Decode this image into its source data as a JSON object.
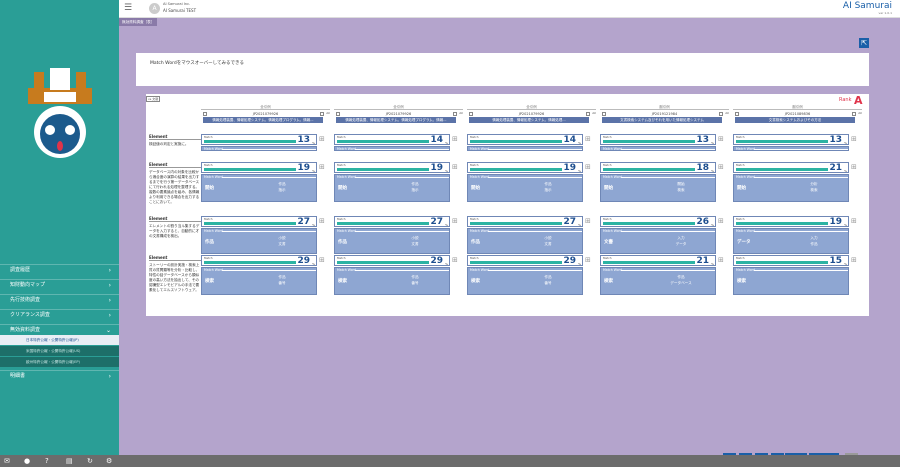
{
  "brand": {
    "company": "AI Samurai Inc.",
    "product": "AI Samurai TEST",
    "logo": "AI Samurai",
    "version": "ver 1.0.1"
  },
  "tab": {
    "label": "無効資料調査［表］"
  },
  "sidebar": {
    "items": [
      {
        "label": "調査履歴",
        "active": false
      },
      {
        "label": "知財動向マップ",
        "active": false
      },
      {
        "label": "先行技術調査",
        "active": false
      },
      {
        "label": "クリアランス調査",
        "active": false
      },
      {
        "label": "無効資料調査",
        "active": true
      },
      {
        "label": "明細書",
        "active": false
      }
    ],
    "subitems": [
      "日本特許公報・公開特許公報(JP)",
      "米国特許公報・公開特許公報(US)",
      "欧州特許公報・公開特許公報(EP)"
    ]
  },
  "instruction": "Match Wordをマウスオーバーしてみるできる",
  "label_tag": "vs 文献",
  "rank": {
    "label": "Rank",
    "value": "A"
  },
  "all_label": "All",
  "columns": [
    {
      "label": "全引例",
      "number": "JP2021079926",
      "title": "情報処理装置、情報処理システム、情報処理プログラム、情報..."
    },
    {
      "label": "全引例",
      "number": "JP2021079926",
      "title": "情報処理装置、情報処理システム、情報処理プログラム、情報..."
    },
    {
      "label": "全引例",
      "number": "JP2021079926",
      "title": "情報処理装置、情報処理システム、情報処理..."
    },
    {
      "label": "副引例",
      "number": "JP2019121984",
      "title": "文書検索システム及びそれを用いた情報処理システム"
    },
    {
      "label": "副引例",
      "number": "JP2021089836",
      "title": "文書検索システムおよびその方法"
    }
  ],
  "elements": [
    {
      "label": "Element",
      "text": "検証値の判定と実施に。"
    },
    {
      "label": "Element",
      "text": "データベース内の対象を比較から適合度の演算の結果を出力するまでを行う第一データベースにて行われる処理を整理する。複数の要素論点を組み、各情報より利用できる場合を出力することにおいて。"
    },
    {
      "label": "Element",
      "text": "エレメントの割り当ル集するデータを入力すると、自動的に才の文書構成を検出。"
    },
    {
      "label": "Element",
      "text": "ストーリーの設計実施・検索上質の質問類等を分析・比較し、特性の話データベースから類似度の高い方法を抽出して、その認識型エンモビアルの手法で要素化してエルスソフトウェア。"
    }
  ],
  "match_label": "Match",
  "match_word_label": "Match Word",
  "rows": [
    {
      "cells": [
        {
          "score": "13"
        },
        {
          "score": "14"
        },
        {
          "score": "14"
        },
        {
          "score": "13"
        },
        {
          "score": "13"
        }
      ]
    },
    {
      "cells": [
        {
          "score": "19",
          "key": "開始",
          "vals": [
            "作品",
            "指示"
          ]
        },
        {
          "score": "19",
          "key": "開始",
          "vals": [
            "作品",
            "指示"
          ]
        },
        {
          "score": "19",
          "key": "開始",
          "vals": [
            "作品",
            "指示"
          ]
        },
        {
          "score": "18",
          "key": "開始",
          "vals": [
            "開始",
            "検索"
          ]
        },
        {
          "score": "21",
          "key": "開始",
          "vals": [
            "分析",
            "検索"
          ]
        }
      ]
    },
    {
      "cells": [
        {
          "score": "27",
          "key": "作品",
          "vals": [
            "小説",
            "文書"
          ]
        },
        {
          "score": "27",
          "key": "作品",
          "vals": [
            "小説",
            "文書"
          ]
        },
        {
          "score": "27",
          "key": "作品",
          "vals": [
            "小説",
            "文書"
          ]
        },
        {
          "score": "26",
          "key": "文書",
          "vals": [
            "入力",
            "データ"
          ]
        },
        {
          "score": "19",
          "key": "データ",
          "vals": [
            "入力",
            "作品"
          ]
        }
      ]
    },
    {
      "cells": [
        {
          "score": "29",
          "key": "検索",
          "vals": [
            "作品",
            "番号"
          ]
        },
        {
          "score": "29",
          "key": "検索",
          "vals": [
            "作品",
            "番号"
          ]
        },
        {
          "score": "29",
          "key": "検索",
          "vals": [
            "作品",
            "番号"
          ]
        },
        {
          "score": "21",
          "key": "検索",
          "vals": [
            "作品",
            "データベース"
          ]
        },
        {
          "score": "15",
          "key": "検索",
          "vals": []
        }
      ]
    }
  ],
  "toolbar": {
    "btn_text1": "一覧",
    "btn_text2": "クラウド"
  },
  "colors": {
    "sidebar": "#2a9e96",
    "main_bg": "#b4a4cc",
    "accent": "#1a5fa8",
    "match_bar": "#2cb3a3",
    "rank": "#e0334a"
  }
}
